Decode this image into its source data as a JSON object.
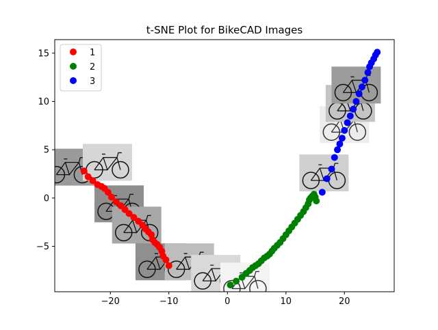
{
  "chart_data": {
    "type": "scatter",
    "title": "t-SNE Plot for BikeCAD Images",
    "xlabel": "",
    "ylabel": "",
    "xlim": [
      -29.5,
      28.5
    ],
    "ylim": [
      -9.7,
      16.4
    ],
    "x_ticks": [
      -20,
      -10,
      0,
      10,
      20
    ],
    "y_ticks": [
      -5,
      0,
      5,
      10,
      15
    ],
    "x_tick_labels": [
      "−20",
      "−10",
      "0",
      "10",
      "20"
    ],
    "y_tick_labels": [
      "−5",
      "0",
      "5",
      "10",
      "15"
    ],
    "grid": false,
    "legend_position": "top-left",
    "series": [
      {
        "name": "1",
        "color": "#ff0000",
        "x": [
          -24.5,
          -23.8,
          -23.0,
          -22.2,
          -21.5,
          -21.0,
          -20.4,
          -19.8,
          -19.0,
          -18.2,
          -17.5,
          -16.8,
          -16.0,
          -15.2,
          -14.5,
          -14.0,
          -13.5,
          -13.0,
          -12.8,
          -12.4,
          -12.0,
          -11.6,
          -11.2,
          -11.0,
          -10.5,
          -10.0
        ],
        "y": [
          2.8,
          2.2,
          1.8,
          1.4,
          1.2,
          1.0,
          0.6,
          0.1,
          -0.4,
          -0.8,
          -1.2,
          -1.6,
          -2.0,
          -2.4,
          -2.8,
          -3.2,
          -3.5,
          -3.8,
          -4.3,
          -4.6,
          -4.8,
          -5.1,
          -5.5,
          -6.0,
          -6.4,
          -7.0
        ]
      },
      {
        "name": "2",
        "color": "#008000",
        "x": [
          0.5,
          1.5,
          2.5,
          3.2,
          3.8,
          4.3,
          4.8,
          5.3,
          5.8,
          6.3,
          6.8,
          7.2,
          7.6,
          8.0,
          8.5,
          9.0,
          9.5,
          10.0,
          10.5,
          11.0,
          11.5,
          12.0,
          12.5,
          13.0,
          13.4,
          13.8,
          14.0,
          14.2,
          14.5,
          14.8,
          15.0,
          15.2
        ],
        "y": [
          -9.0,
          -8.6,
          -8.2,
          -7.8,
          -7.5,
          -7.2,
          -7.0,
          -6.8,
          -6.5,
          -6.2,
          -6.0,
          -5.8,
          -5.5,
          -5.2,
          -4.9,
          -4.6,
          -4.2,
          -3.8,
          -3.4,
          -3.0,
          -2.6,
          -2.2,
          -1.8,
          -1.4,
          -1.0,
          -0.6,
          -0.2,
          0.0,
          0.2,
          0.4,
          0.1,
          -0.3
        ]
      },
      {
        "name": "3",
        "color": "#0000ff",
        "x": [
          16.2,
          17.0,
          17.8,
          18.3,
          18.8,
          19.2,
          19.6,
          20.0,
          20.5,
          21.0,
          21.5,
          22.0,
          22.5,
          23.0,
          23.5,
          24.0,
          24.3,
          24.6,
          25.0,
          25.3,
          25.6
        ],
        "y": [
          0.6,
          2.0,
          3.0,
          4.2,
          5.0,
          5.6,
          6.2,
          7.0,
          7.8,
          8.5,
          9.2,
          10.0,
          10.8,
          11.5,
          12.2,
          13.0,
          13.6,
          14.0,
          14.4,
          14.8,
          15.1
        ]
      }
    ],
    "image_thumbnails": [
      {
        "x": -27.0,
        "y": 3.2
      },
      {
        "x": -20.5,
        "y": 3.7
      },
      {
        "x": -18.5,
        "y": -0.6
      },
      {
        "x": -15.5,
        "y": -2.8
      },
      {
        "x": -11.5,
        "y": -6.6
      },
      {
        "x": -6.5,
        "y": -6.6
      },
      {
        "x": -2.0,
        "y": -7.8
      },
      {
        "x": 3.0,
        "y": -8.6
      },
      {
        "x": 16.5,
        "y": 2.6
      },
      {
        "x": 20.0,
        "y": 7.6
      },
      {
        "x": 21.0,
        "y": 9.8
      },
      {
        "x": 22.0,
        "y": 11.7
      }
    ]
  }
}
